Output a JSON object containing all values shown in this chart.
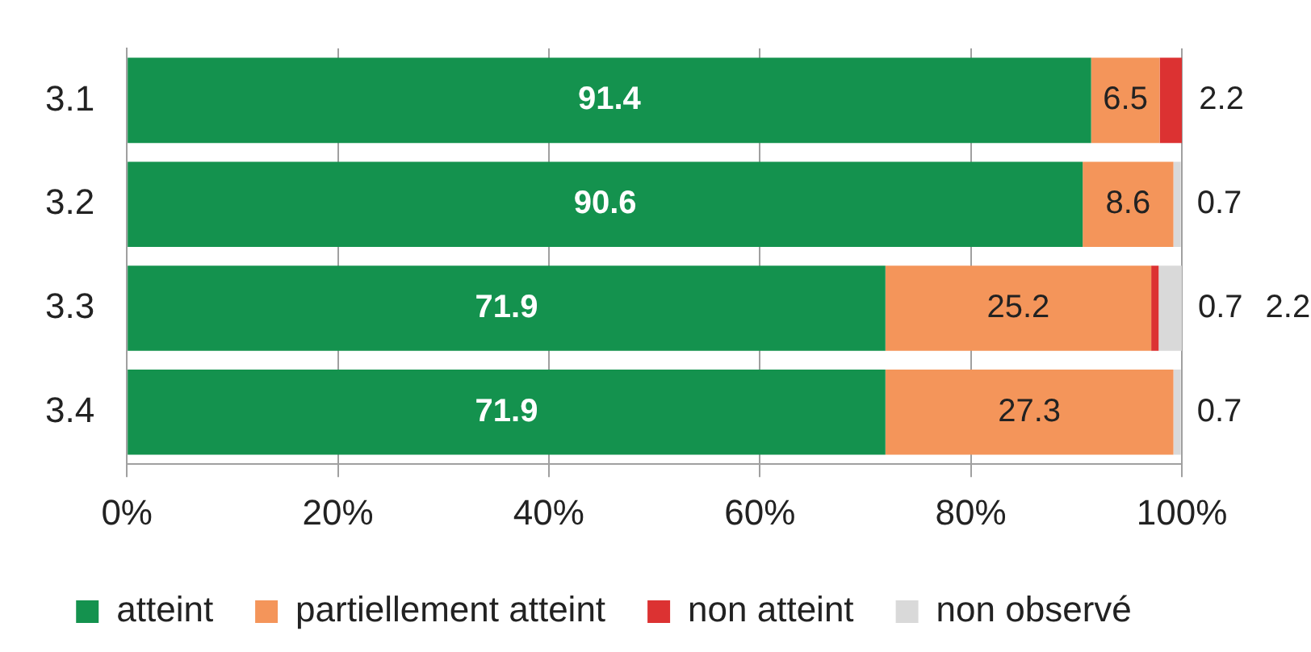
{
  "chart_data": {
    "type": "bar",
    "orientation": "horizontal",
    "stacked": true,
    "categories": [
      "3.1",
      "3.2",
      "3.3",
      "3.4"
    ],
    "series": [
      {
        "name": "atteint",
        "color": "#14924e",
        "values": [
          91.4,
          90.6,
          71.9,
          71.9
        ]
      },
      {
        "name": "partiellement atteint",
        "color": "#f4955a",
        "values": [
          6.5,
          8.6,
          25.2,
          27.3
        ]
      },
      {
        "name": "non atteint",
        "color": "#dc3232",
        "values": [
          2.2,
          null,
          0.7,
          null
        ]
      },
      {
        "name": "non observé",
        "color": "#d9d9d9",
        "values": [
          null,
          0.7,
          2.2,
          0.7
        ]
      }
    ],
    "xlim": [
      0,
      100
    ],
    "xticks": [
      {
        "value": 0,
        "label": "0%"
      },
      {
        "value": 20,
        "label": "20%"
      },
      {
        "value": 40,
        "label": "40%"
      },
      {
        "value": 60,
        "label": "60%"
      },
      {
        "value": 80,
        "label": "80%"
      },
      {
        "value": 100,
        "label": "100%"
      }
    ],
    "grid": "x",
    "legend": "bottom",
    "data_labels": true
  }
}
